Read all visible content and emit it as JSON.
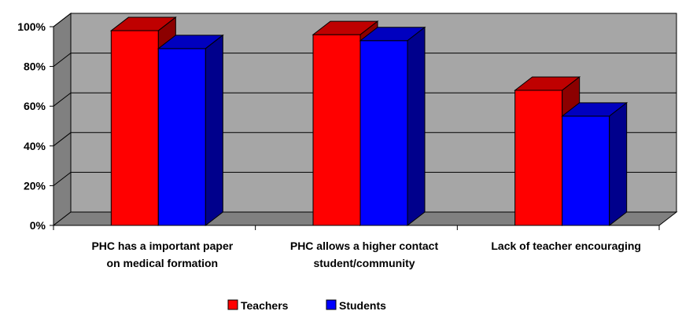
{
  "chart_data": {
    "type": "bar",
    "title": "",
    "xlabel": "",
    "ylabel": "",
    "categories": [
      [
        "PHC has a important paper",
        "on medical formation"
      ],
      [
        "PHC allows a higher contact",
        "student/community"
      ],
      [
        "Lack of teacher encouraging"
      ]
    ],
    "series": [
      {
        "name": "Teachers",
        "values": [
          0.98,
          0.96,
          0.68
        ],
        "color": "#ff0000"
      },
      {
        "name": "Students",
        "values": [
          0.89,
          0.93,
          0.55
        ],
        "color": "#0000ff"
      }
    ],
    "ylim": [
      0,
      1.0
    ],
    "yticks": [
      {
        "value": 0,
        "label": "0%"
      },
      {
        "value": 0.2,
        "label": "20%"
      },
      {
        "value": 0.4,
        "label": "40%"
      },
      {
        "value": 0.6,
        "label": "60%"
      },
      {
        "value": 0.8,
        "label": "80%"
      },
      {
        "value": 1.0,
        "label": "100%"
      }
    ],
    "grid": true,
    "style": "3d-clustered",
    "legend": "bottom",
    "wall_color": "#a6a6a6",
    "floor_color": "#808080"
  }
}
